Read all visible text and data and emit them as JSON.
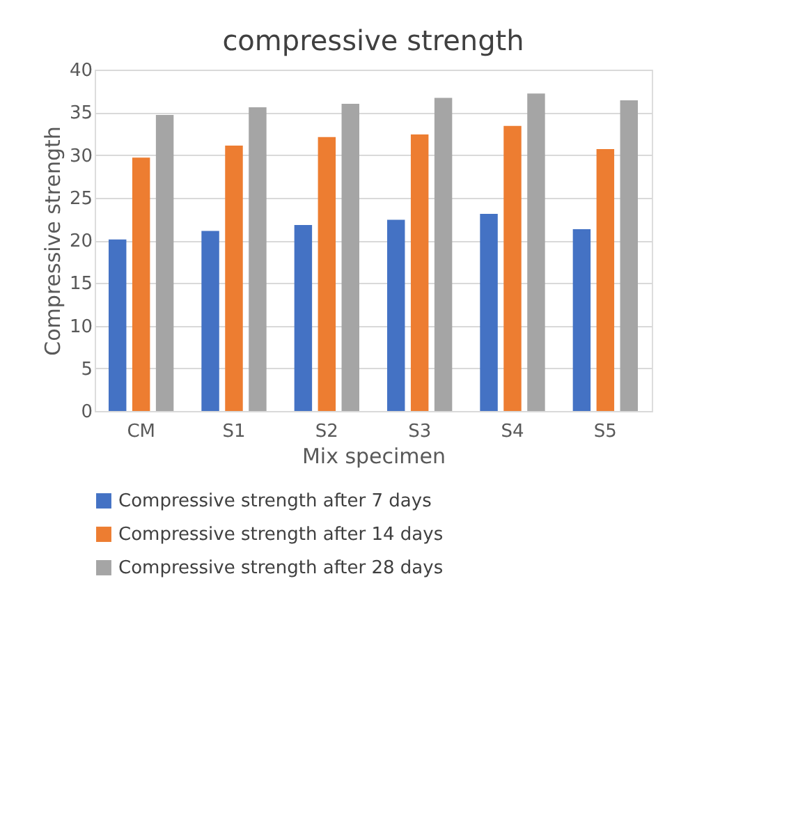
{
  "chart_data": {
    "type": "bar",
    "title": "compressive strength",
    "xlabel": "Mix specimen",
    "ylabel": "Compressive strength",
    "categories": [
      "CM",
      "S1",
      "S2",
      "S3",
      "S4",
      "S5"
    ],
    "series": [
      {
        "name": "Compressive strength after 7 days",
        "color": "#4472c4",
        "values": [
          20.1,
          21.1,
          21.8,
          22.4,
          23.1,
          21.3
        ]
      },
      {
        "name": "Compressive strength after 14 days",
        "color": "#ed7d31",
        "values": [
          29.7,
          31.1,
          32.1,
          32.4,
          33.4,
          30.7
        ]
      },
      {
        "name": "Compressive strength after 28 days",
        "color": "#a5a5a5",
        "values": [
          34.7,
          35.6,
          36.0,
          36.7,
          37.2,
          36.4
        ]
      }
    ],
    "ylim": [
      0,
      40
    ],
    "yticks": [
      0,
      5,
      10,
      15,
      20,
      25,
      30,
      35,
      40
    ],
    "grid": "y",
    "legend": "bottom"
  }
}
